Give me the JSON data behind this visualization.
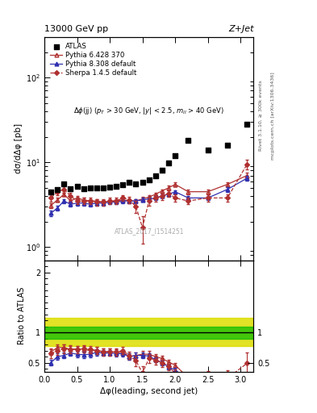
{
  "title_top_left": "13000 GeV pp",
  "title_top_right": "Z+Jet",
  "subtitle": "Δφ(jj) (p_T > 30 GeV, |y| < 2.5, m_{ll} > 40 GeV)",
  "ylabel_main": "dσ/dΔφ [pb]",
  "ylabel_ratio": "Ratio to ATLAS",
  "xlabel": "Δφ(leading, second jet)",
  "watermark": "ATLAS_2017_I1514251",
  "right_label1": "Rivet 3.1.10, ≥ 300k events",
  "right_label2": "mcplots.cern.ch [arXiv:1306.3436]",
  "atlas_x": [
    0.1,
    0.2,
    0.3,
    0.4,
    0.5,
    0.6,
    0.7,
    0.8,
    0.9,
    1.0,
    1.1,
    1.2,
    1.3,
    1.4,
    1.5,
    1.6,
    1.7,
    1.8,
    1.9,
    2.0,
    2.2,
    2.5,
    2.8,
    3.1
  ],
  "atlas_y": [
    4.5,
    4.8,
    5.6,
    4.9,
    5.2,
    4.9,
    5.0,
    5.0,
    5.0,
    5.1,
    5.2,
    5.4,
    5.8,
    5.6,
    5.8,
    6.2,
    7.0,
    8.0,
    9.8,
    12.0,
    18.0,
    14.0,
    16.0,
    28.0
  ],
  "py6_x": [
    0.1,
    0.2,
    0.3,
    0.4,
    0.5,
    0.6,
    0.7,
    0.8,
    0.9,
    1.0,
    1.1,
    1.2,
    1.3,
    1.4,
    1.5,
    1.6,
    1.7,
    1.8,
    1.9,
    2.0,
    2.2,
    2.5,
    2.8,
    3.1
  ],
  "py6_y": [
    3.1,
    3.6,
    4.2,
    3.5,
    3.8,
    3.6,
    3.5,
    3.5,
    3.4,
    3.5,
    3.5,
    3.6,
    3.5,
    3.5,
    3.7,
    3.9,
    4.2,
    4.6,
    5.0,
    5.5,
    4.5,
    4.5,
    5.5,
    7.0
  ],
  "py6_yerr": [
    0.2,
    0.2,
    0.2,
    0.2,
    0.2,
    0.2,
    0.2,
    0.2,
    0.2,
    0.2,
    0.2,
    0.2,
    0.2,
    0.2,
    0.2,
    0.2,
    0.2,
    0.2,
    0.3,
    0.3,
    0.3,
    0.3,
    0.3,
    0.5
  ],
  "py8_x": [
    0.1,
    0.2,
    0.3,
    0.4,
    0.5,
    0.6,
    0.7,
    0.8,
    0.9,
    1.0,
    1.1,
    1.2,
    1.3,
    1.4,
    1.5,
    1.6,
    1.7,
    1.8,
    1.9,
    2.0,
    2.2,
    2.5,
    2.8,
    3.1
  ],
  "py8_y": [
    2.5,
    2.9,
    3.5,
    3.2,
    3.3,
    3.3,
    3.2,
    3.3,
    3.3,
    3.4,
    3.4,
    3.5,
    3.5,
    3.5,
    3.6,
    3.7,
    3.8,
    4.0,
    4.2,
    4.5,
    3.8,
    3.8,
    4.8,
    6.5
  ],
  "py8_yerr": [
    0.2,
    0.2,
    0.2,
    0.2,
    0.2,
    0.2,
    0.2,
    0.2,
    0.2,
    0.2,
    0.2,
    0.2,
    0.2,
    0.2,
    0.2,
    0.2,
    0.2,
    0.2,
    0.2,
    0.2,
    0.2,
    0.2,
    0.3,
    0.4
  ],
  "sherpa_x": [
    0.1,
    0.2,
    0.3,
    0.4,
    0.5,
    0.6,
    0.7,
    0.8,
    0.9,
    1.0,
    1.1,
    1.2,
    1.3,
    1.4,
    1.5,
    1.6,
    1.7,
    1.8,
    1.9,
    2.0,
    2.2,
    2.5,
    2.8,
    3.1
  ],
  "sherpa_y": [
    3.8,
    4.5,
    4.8,
    4.0,
    3.5,
    3.5,
    3.5,
    3.4,
    3.4,
    3.5,
    3.5,
    3.8,
    3.6,
    3.0,
    1.7,
    3.5,
    3.8,
    4.0,
    4.3,
    3.8,
    3.5,
    3.8,
    3.8,
    9.5
  ],
  "sherpa_yerr": [
    0.4,
    0.4,
    0.4,
    0.4,
    0.3,
    0.3,
    0.3,
    0.3,
    0.3,
    0.3,
    0.3,
    0.3,
    0.3,
    0.5,
    0.6,
    0.4,
    0.4,
    0.4,
    0.4,
    0.4,
    0.3,
    0.4,
    0.4,
    1.2
  ],
  "ratio_py6_y": [
    0.68,
    0.75,
    0.75,
    0.72,
    0.73,
    0.72,
    0.7,
    0.71,
    0.68,
    0.69,
    0.67,
    0.67,
    0.6,
    0.62,
    0.64,
    0.64,
    0.6,
    0.57,
    0.51,
    0.46,
    0.25,
    0.32,
    0.34,
    0.25
  ],
  "ratio_py6_yerr": [
    0.05,
    0.05,
    0.05,
    0.05,
    0.05,
    0.05,
    0.05,
    0.05,
    0.05,
    0.05,
    0.05,
    0.05,
    0.05,
    0.05,
    0.05,
    0.05,
    0.04,
    0.04,
    0.04,
    0.04,
    0.04,
    0.04,
    0.04,
    0.05
  ],
  "ratio_py8_y": [
    0.5,
    0.6,
    0.62,
    0.66,
    0.64,
    0.63,
    0.64,
    0.67,
    0.66,
    0.66,
    0.65,
    0.65,
    0.6,
    0.62,
    0.62,
    0.61,
    0.55,
    0.5,
    0.43,
    0.38,
    0.21,
    0.27,
    0.3,
    0.23
  ],
  "ratio_py8_yerr": [
    0.05,
    0.05,
    0.05,
    0.05,
    0.05,
    0.05,
    0.05,
    0.05,
    0.05,
    0.05,
    0.05,
    0.05,
    0.05,
    0.05,
    0.05,
    0.05,
    0.04,
    0.04,
    0.04,
    0.04,
    0.04,
    0.04,
    0.04,
    0.05
  ],
  "ratio_sherpa_y": [
    0.65,
    0.7,
    0.73,
    0.72,
    0.72,
    0.73,
    0.72,
    0.7,
    0.68,
    0.68,
    0.68,
    0.7,
    0.62,
    0.53,
    0.33,
    0.57,
    0.54,
    0.5,
    0.44,
    0.32,
    0.19,
    0.27,
    0.24,
    0.49
  ],
  "ratio_sherpa_yerr": [
    0.07,
    0.07,
    0.07,
    0.07,
    0.06,
    0.06,
    0.06,
    0.06,
    0.06,
    0.06,
    0.06,
    0.06,
    0.06,
    0.09,
    0.11,
    0.07,
    0.07,
    0.07,
    0.07,
    0.07,
    0.06,
    0.07,
    0.07,
    0.18
  ],
  "green_band_lo": 0.9,
  "green_band_hi": 1.1,
  "yellow_band_lo": 0.77,
  "yellow_band_hi": 1.25,
  "xlim": [
    0.0,
    3.2
  ],
  "ylim_main": [
    0.7,
    300
  ],
  "ylim_ratio": [
    0.35,
    2.2
  ],
  "color_atlas": "black",
  "color_py6": "#b03030",
  "color_py8": "#3030b0",
  "color_sherpa": "#b03030",
  "color_green": "#00bb00",
  "color_yellow": "#dddd00"
}
